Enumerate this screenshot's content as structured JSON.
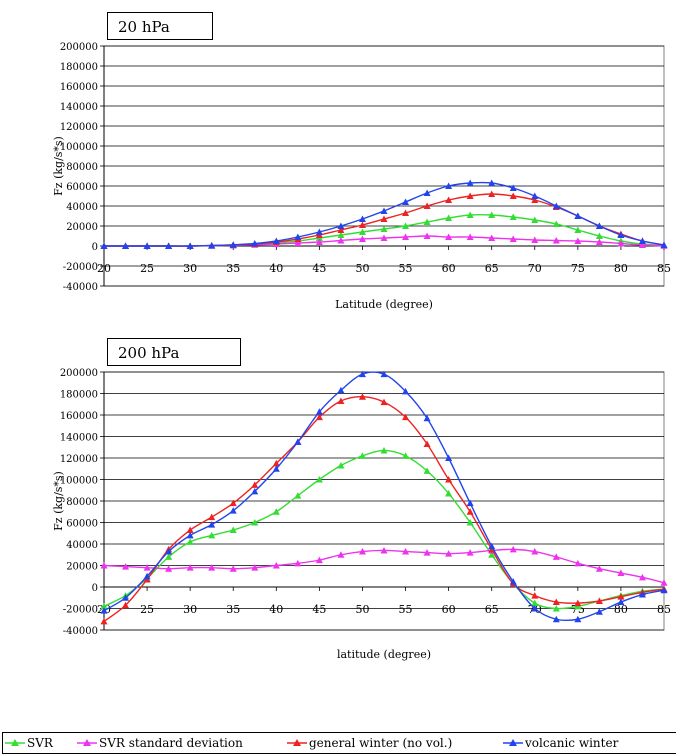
{
  "chart_data": [
    {
      "type": "line",
      "title": "20 hPa",
      "xlabel": "Latitude (degree)",
      "ylabel": "Fz (kg/s*s)",
      "xlim": [
        20,
        85
      ],
      "ylim": [
        -40000,
        200000
      ],
      "xticks": [
        "20",
        "25",
        "30",
        "35",
        "40",
        "45",
        "50",
        "55",
        "60",
        "65",
        "70",
        "75",
        "80",
        "85"
      ],
      "yticks": [
        "-40000",
        "-20000",
        "0",
        "20000",
        "40000",
        "60000",
        "80000",
        "100000",
        "120000",
        "140000",
        "160000",
        "180000",
        "200000"
      ],
      "grid": "horizontal",
      "series": [
        {
          "name": "SVR",
          "color": "#33dd33",
          "marker": "triangle",
          "x": [
            20,
            22.5,
            25,
            27.5,
            30,
            32.5,
            35,
            37.5,
            40,
            42.5,
            45,
            47.5,
            50,
            52.5,
            55,
            57.5,
            60,
            62.5,
            65,
            67.5,
            70,
            72.5,
            75,
            77.5,
            80,
            82.5,
            85
          ],
          "y": [
            0,
            0,
            0,
            0,
            0,
            300,
            800,
            1500,
            3000,
            5000,
            8000,
            11000,
            14000,
            17000,
            20000,
            24000,
            28000,
            31000,
            31000,
            29000,
            26000,
            22000,
            16000,
            10000,
            5000,
            2000,
            500
          ]
        },
        {
          "name": "SVR standard deviation",
          "color": "#ee33ee",
          "marker": "triangle",
          "x": [
            20,
            22.5,
            25,
            27.5,
            30,
            32.5,
            35,
            37.5,
            40,
            42.5,
            45,
            47.5,
            50,
            52.5,
            55,
            57.5,
            60,
            62.5,
            65,
            67.5,
            70,
            72.5,
            75,
            77.5,
            80,
            82.5,
            85
          ],
          "y": [
            0,
            0,
            0,
            0,
            0,
            300,
            600,
            1200,
            2000,
            3000,
            4000,
            5500,
            7000,
            8000,
            9000,
            10000,
            9000,
            9000,
            8000,
            7000,
            6000,
            5500,
            5000,
            4000,
            2500,
            1000,
            200
          ]
        },
        {
          "name": "general winter (no vol.)",
          "color": "#ee2222",
          "marker": "triangle",
          "x": [
            20,
            22.5,
            25,
            27.5,
            30,
            32.5,
            35,
            37.5,
            40,
            42.5,
            45,
            47.5,
            50,
            52.5,
            55,
            57.5,
            60,
            62.5,
            65,
            67.5,
            70,
            72.5,
            75,
            77.5,
            80,
            82.5,
            85
          ],
          "y": [
            0,
            0,
            0,
            0,
            0,
            500,
            1000,
            2000,
            4000,
            7000,
            11000,
            16000,
            21000,
            27000,
            33000,
            40000,
            46000,
            50000,
            52000,
            50000,
            46000,
            39000,
            30000,
            20000,
            12000,
            5000,
            1000
          ]
        },
        {
          "name": "volcanic winter",
          "color": "#2244ee",
          "marker": "triangle",
          "x": [
            20,
            22.5,
            25,
            27.5,
            30,
            32.5,
            35,
            37.5,
            40,
            42.5,
            45,
            47.5,
            50,
            52.5,
            55,
            57.5,
            60,
            62.5,
            65,
            67.5,
            70,
            72.5,
            75,
            77.5,
            80,
            82.5,
            85
          ],
          "y": [
            0,
            0,
            0,
            0,
            0,
            500,
            1200,
            2500,
            5000,
            9000,
            14000,
            20000,
            27000,
            35000,
            44000,
            53000,
            60000,
            63000,
            63000,
            58000,
            50000,
            40000,
            30000,
            20000,
            11000,
            5000,
            1000
          ]
        }
      ]
    },
    {
      "type": "line",
      "title": "200 hPa",
      "xlabel": "latitude (degree)",
      "ylabel": "Fz (kg/s*s)",
      "xlim": [
        20,
        85
      ],
      "ylim": [
        -40000,
        200000
      ],
      "xticks": [
        "20",
        "25",
        "30",
        "35",
        "40",
        "45",
        "50",
        "55",
        "60",
        "65",
        "70",
        "75",
        "80",
        "85"
      ],
      "yticks": [
        "-40000",
        "-20000",
        "0",
        "20000",
        "40000",
        "60000",
        "80000",
        "100000",
        "120000",
        "140000",
        "160000",
        "180000",
        "200000"
      ],
      "grid": "horizontal",
      "series": [
        {
          "name": "SVR",
          "color": "#33dd33",
          "marker": "triangle",
          "x": [
            20,
            22.5,
            25,
            27.5,
            30,
            32.5,
            35,
            37.5,
            40,
            42.5,
            45,
            47.5,
            50,
            52.5,
            55,
            57.5,
            60,
            62.5,
            65,
            67.5,
            70,
            72.5,
            75,
            77.5,
            80,
            82.5,
            85
          ],
          "y": [
            -18000,
            -8000,
            8000,
            28000,
            42000,
            48000,
            53000,
            60000,
            70000,
            85000,
            100000,
            113000,
            122000,
            127000,
            122000,
            108000,
            87000,
            60000,
            30000,
            3000,
            -15000,
            -20000,
            -18000,
            -13000,
            -8000,
            -4000,
            -2000
          ]
        },
        {
          "name": "SVR standard deviation",
          "color": "#ee33ee",
          "marker": "triangle",
          "x": [
            20,
            22.5,
            25,
            27.5,
            30,
            32.5,
            35,
            37.5,
            40,
            42.5,
            45,
            47.5,
            50,
            52.5,
            55,
            57.5,
            60,
            62.5,
            65,
            67.5,
            70,
            72.5,
            75,
            77.5,
            80,
            82.5,
            85
          ],
          "y": [
            20000,
            19000,
            18000,
            17000,
            18000,
            18000,
            17000,
            18000,
            20000,
            22000,
            25000,
            30000,
            33000,
            34000,
            33000,
            32000,
            31000,
            32000,
            34000,
            35000,
            33000,
            28000,
            22000,
            17000,
            13000,
            9000,
            4000
          ]
        },
        {
          "name": "general winter (no vol.)",
          "color": "#ee2222",
          "marker": "triangle",
          "x": [
            20,
            22.5,
            25,
            27.5,
            30,
            32.5,
            35,
            37.5,
            40,
            42.5,
            45,
            47.5,
            50,
            52.5,
            55,
            57.5,
            60,
            62.5,
            65,
            67.5,
            70,
            72.5,
            75,
            77.5,
            80,
            82.5,
            85
          ],
          "y": [
            -32000,
            -17000,
            7000,
            35000,
            53000,
            65000,
            78000,
            95000,
            115000,
            135000,
            158000,
            173000,
            177000,
            172000,
            158000,
            133000,
            100000,
            70000,
            35000,
            3000,
            -8000,
            -14000,
            -15000,
            -13000,
            -9000,
            -5000,
            -2000
          ]
        },
        {
          "name": "volcanic winter",
          "color": "#2244ee",
          "marker": "triangle",
          "x": [
            20,
            22.5,
            25,
            27.5,
            30,
            32.5,
            35,
            37.5,
            40,
            42.5,
            45,
            47.5,
            50,
            52.5,
            55,
            57.5,
            60,
            62.5,
            65,
            67.5,
            70,
            72.5,
            75,
            77.5,
            80,
            82.5,
            85
          ],
          "y": [
            -22000,
            -10000,
            10000,
            33000,
            48000,
            58000,
            71000,
            89000,
            110000,
            135000,
            163000,
            183000,
            198000,
            198000,
            182000,
            157000,
            120000,
            78000,
            38000,
            5000,
            -20000,
            -30000,
            -30000,
            -23000,
            -14000,
            -7000,
            -3000
          ]
        }
      ]
    }
  ],
  "legend": [
    {
      "label": "SVR",
      "color": "#33dd33"
    },
    {
      "label": "SVR standard deviation",
      "color": "#ee33ee"
    },
    {
      "label": "general winter (no vol.)",
      "color": "#ee2222"
    },
    {
      "label": "volcanic winter",
      "color": "#2244ee"
    }
  ]
}
